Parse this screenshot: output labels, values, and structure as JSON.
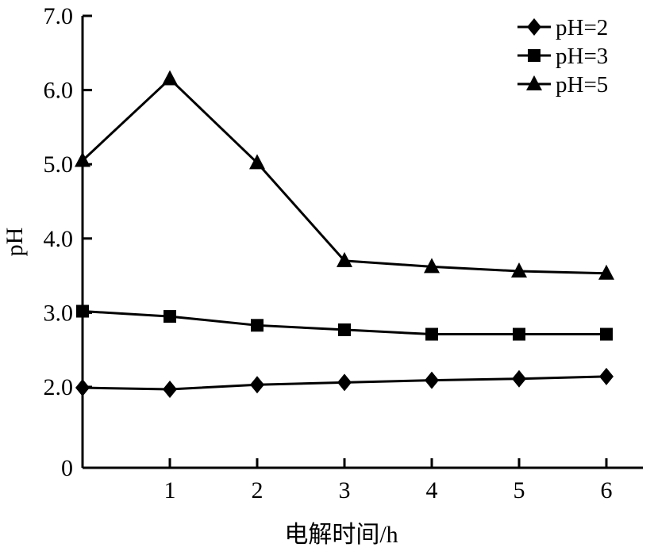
{
  "chart_data": {
    "type": "line",
    "title": "",
    "xlabel": "电解时间/h",
    "ylabel": "pH",
    "x": [
      0,
      1,
      2,
      3,
      4,
      5,
      6
    ],
    "xticks": [
      1,
      2,
      3,
      4,
      5,
      6
    ],
    "xtick_labels": [
      "1",
      "2",
      "3",
      "4",
      "5",
      "6"
    ],
    "yticks": [
      0,
      2.0,
      3.0,
      4.0,
      5.0,
      6.0,
      7.0
    ],
    "ytick_labels": [
      "0",
      "2.0",
      "3.0",
      "4.0",
      "5.0",
      "6.0",
      "7.0"
    ],
    "xlim": [
      0,
      6.3
    ],
    "ylim_display": [
      0,
      7.0
    ],
    "y_axis_note": "non-linear axis: 0 mapped below 2.0 with compressed gap",
    "grid": false,
    "legend_position": "top-right",
    "series": [
      {
        "name": "pH=2",
        "marker": "diamond",
        "values": [
          1.98,
          1.94,
          2.03,
          2.06,
          2.09,
          2.11,
          2.14
        ]
      },
      {
        "name": "pH=3",
        "marker": "square",
        "values": [
          3.02,
          2.95,
          2.83,
          2.77,
          2.71,
          2.71,
          2.71
        ]
      },
      {
        "name": "pH=5",
        "marker": "triangle",
        "values": [
          5.05,
          6.15,
          5.02,
          3.7,
          3.62,
          3.56,
          3.53
        ]
      }
    ]
  }
}
